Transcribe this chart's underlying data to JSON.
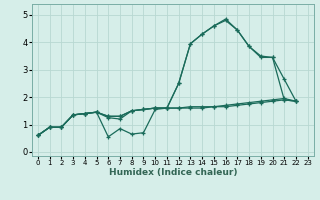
{
  "xlabel": "Humidex (Indice chaleur)",
  "bg_color": "#d6eee9",
  "grid_color": "#b8d8d2",
  "line_color": "#1a6b5a",
  "axis_color": "#336655",
  "xlim": [
    -0.5,
    23.5
  ],
  "ylim": [
    -0.15,
    5.4
  ],
  "xticks": [
    0,
    1,
    2,
    3,
    4,
    5,
    6,
    7,
    8,
    9,
    10,
    11,
    12,
    13,
    14,
    15,
    16,
    17,
    18,
    19,
    20,
    21,
    22,
    23
  ],
  "yticks": [
    0,
    1,
    2,
    3,
    4,
    5
  ],
  "series": [
    [
      0.6,
      0.9,
      0.9,
      1.35,
      1.4,
      1.45,
      1.25,
      1.2,
      1.5,
      1.55,
      1.6,
      1.6,
      1.6,
      1.6,
      1.6,
      1.65,
      1.65,
      1.7,
      1.75,
      1.8,
      1.85,
      1.9,
      1.85
    ],
    [
      0.6,
      0.9,
      0.9,
      1.35,
      1.4,
      1.45,
      0.55,
      0.85,
      0.65,
      0.7,
      1.55,
      1.6,
      2.5,
      3.95,
      4.3,
      4.6,
      4.8,
      4.45,
      3.85,
      3.45,
      3.45,
      1.9,
      1.85
    ],
    [
      0.6,
      0.9,
      0.9,
      1.35,
      1.4,
      1.45,
      1.3,
      1.3,
      1.5,
      1.55,
      1.6,
      1.6,
      1.6,
      1.65,
      1.65,
      1.65,
      1.7,
      1.75,
      1.8,
      1.85,
      1.9,
      1.95,
      1.85
    ],
    [
      0.6,
      0.9,
      0.9,
      1.35,
      1.4,
      1.45,
      1.3,
      1.3,
      1.5,
      1.55,
      1.6,
      1.6,
      2.5,
      3.95,
      4.3,
      4.6,
      4.85,
      4.45,
      3.85,
      3.5,
      3.45,
      2.65,
      1.85
    ]
  ],
  "x_values": [
    0,
    1,
    2,
    3,
    4,
    5,
    6,
    7,
    8,
    9,
    10,
    11,
    12,
    13,
    14,
    15,
    16,
    17,
    18,
    19,
    20,
    21,
    22
  ]
}
